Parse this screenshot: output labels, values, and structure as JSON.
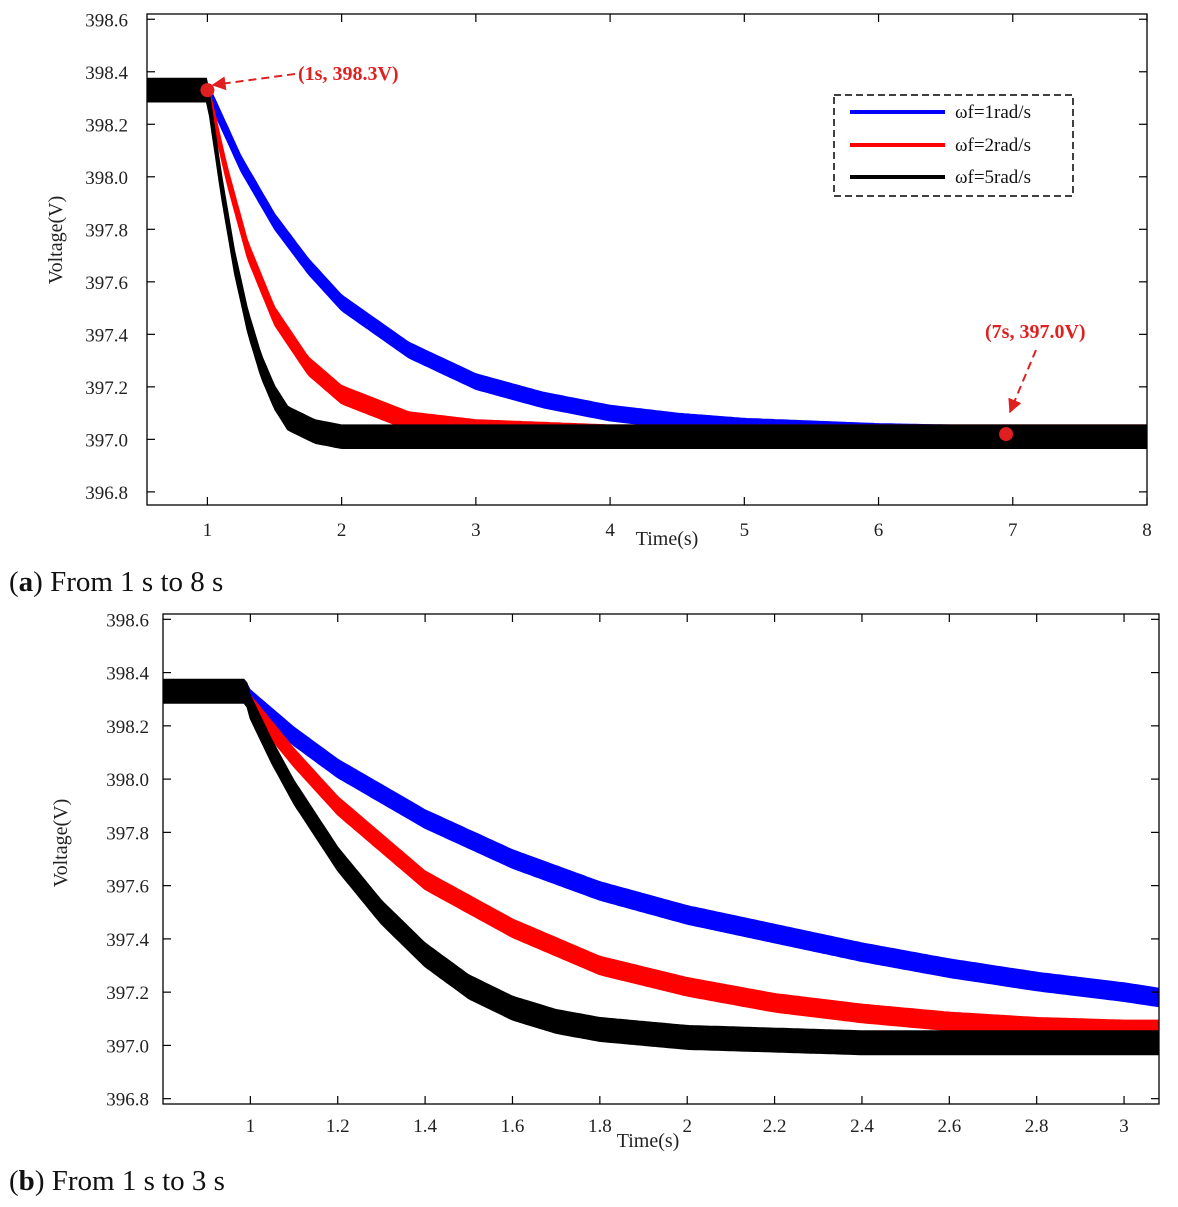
{
  "colors": {
    "blue": "#0000ff",
    "red": "#ff0000",
    "black": "#000000",
    "annotation": "#e02020"
  },
  "chart_data": [
    {
      "type": "line",
      "panel_letter": "a",
      "caption": "From 1 s to 8 s",
      "xlabel": "Time(s)",
      "ylabel": "Voltage(V)",
      "xlim": [
        0.55,
        8.0
      ],
      "ylim": [
        396.75,
        398.62
      ],
      "x_ticks": [
        1,
        2,
        3,
        4,
        5,
        6,
        7,
        8
      ],
      "x_tick_labels": [
        "1",
        "2",
        "3",
        "4",
        "5",
        "6",
        "7",
        "8"
      ],
      "y_ticks": [
        396.8,
        397.0,
        397.2,
        397.4,
        397.6,
        397.8,
        398.0,
        398.2,
        398.4,
        398.6
      ],
      "y_tick_labels": [
        "396.8",
        "397.0",
        "397.2",
        "397.4",
        "397.6",
        "397.8",
        "398.0",
        "398.2",
        "398.4",
        "398.6"
      ],
      "grid": false,
      "legend_position": "top-right",
      "series": [
        {
          "name": "ωf=1rad/s",
          "color": "#0000ff",
          "ripple": 0.03,
          "points": [
            [
              0.55,
              398.33
            ],
            [
              1.0,
              398.33
            ],
            [
              1.25,
              398.05
            ],
            [
              1.5,
              397.83
            ],
            [
              1.75,
              397.66
            ],
            [
              2.0,
              397.52
            ],
            [
              2.5,
              397.34
            ],
            [
              3.0,
              397.22
            ],
            [
              3.5,
              397.15
            ],
            [
              4.0,
              397.1
            ],
            [
              4.5,
              397.07
            ],
            [
              5.0,
              397.05
            ],
            [
              6.0,
              397.03
            ],
            [
              7.0,
              397.02
            ],
            [
              8.0,
              397.02
            ]
          ]
        },
        {
          "name": "ωf=2rad/s",
          "color": "#ff0000",
          "ripple": 0.035,
          "points": [
            [
              0.55,
              398.33
            ],
            [
              1.0,
              398.33
            ],
            [
              1.15,
              398.0
            ],
            [
              1.3,
              397.72
            ],
            [
              1.5,
              397.47
            ],
            [
              1.75,
              397.28
            ],
            [
              2.0,
              397.17
            ],
            [
              2.5,
              397.07
            ],
            [
              3.0,
              397.04
            ],
            [
              4.0,
              397.02
            ],
            [
              5.0,
              397.02
            ],
            [
              8.0,
              397.02
            ]
          ]
        },
        {
          "name": "ωf=5rad/s",
          "color": "#000000",
          "ripple": 0.045,
          "points": [
            [
              0.55,
              398.33
            ],
            [
              1.0,
              398.33
            ],
            [
              1.1,
              397.98
            ],
            [
              1.2,
              397.68
            ],
            [
              1.3,
              397.45
            ],
            [
              1.4,
              397.28
            ],
            [
              1.5,
              397.16
            ],
            [
              1.6,
              397.08
            ],
            [
              1.8,
              397.03
            ],
            [
              2.0,
              397.01
            ],
            [
              3.0,
              397.01
            ],
            [
              8.0,
              397.01
            ]
          ]
        }
      ],
      "annotations": [
        {
          "text": "(1s, 398.3V)",
          "x": 1.0,
          "y": 398.33
        },
        {
          "text": "(7s, 397.0V)",
          "x": 6.95,
          "y": 397.02
        }
      ]
    },
    {
      "type": "line",
      "panel_letter": "b",
      "caption": "From 1 s to 3 s",
      "xlabel": "Time(s)",
      "ylabel": "Voltage(V)",
      "xlim": [
        0.8,
        3.08
      ],
      "ylim": [
        396.78,
        398.62
      ],
      "x_ticks": [
        1,
        1.2,
        1.4,
        1.6,
        1.8,
        2,
        2.2,
        2.4,
        2.6,
        2.8,
        3
      ],
      "x_tick_labels": [
        "1",
        "1.2",
        "1.4",
        "1.6",
        "1.8",
        "2",
        "2.2",
        "2.4",
        "2.6",
        "2.8",
        "3"
      ],
      "y_ticks": [
        396.8,
        397.0,
        397.2,
        397.4,
        397.6,
        397.8,
        398.0,
        398.2,
        398.4,
        398.6
      ],
      "y_tick_labels": [
        "396.8",
        "397.0",
        "397.2",
        "397.4",
        "397.6",
        "397.8",
        "398.0",
        "398.2",
        "398.4",
        "398.6"
      ],
      "grid": false,
      "series": [
        {
          "name": "ωf=1rad/s",
          "color": "#0000ff",
          "ripple": 0.035,
          "points": [
            [
              0.8,
              398.33
            ],
            [
              0.99,
              398.33
            ],
            [
              1.0,
              398.3
            ],
            [
              1.1,
              398.16
            ],
            [
              1.2,
              398.04
            ],
            [
              1.4,
              397.85
            ],
            [
              1.6,
              397.7
            ],
            [
              1.8,
              397.58
            ],
            [
              2.0,
              397.49
            ],
            [
              2.2,
              397.42
            ],
            [
              2.4,
              397.35
            ],
            [
              2.6,
              397.29
            ],
            [
              2.8,
              397.24
            ],
            [
              3.0,
              397.2
            ],
            [
              3.08,
              397.18
            ]
          ]
        },
        {
          "name": "ωf=2rad/s",
          "color": "#ff0000",
          "ripple": 0.035,
          "points": [
            [
              0.8,
              398.33
            ],
            [
              0.99,
              398.33
            ],
            [
              1.0,
              398.28
            ],
            [
              1.1,
              398.08
            ],
            [
              1.2,
              397.9
            ],
            [
              1.4,
              397.62
            ],
            [
              1.6,
              397.44
            ],
            [
              1.8,
              397.3
            ],
            [
              2.0,
              397.22
            ],
            [
              2.2,
              397.16
            ],
            [
              2.4,
              397.12
            ],
            [
              2.6,
              397.09
            ],
            [
              2.8,
              397.07
            ],
            [
              3.0,
              397.06
            ],
            [
              3.08,
              397.06
            ]
          ]
        },
        {
          "name": "ωf=5rad/s",
          "color": "#000000",
          "ripple": 0.045,
          "points": [
            [
              0.8,
              398.33
            ],
            [
              0.99,
              398.33
            ],
            [
              1.0,
              398.27
            ],
            [
              1.05,
              398.1
            ],
            [
              1.1,
              397.95
            ],
            [
              1.2,
              397.7
            ],
            [
              1.3,
              397.5
            ],
            [
              1.4,
              397.34
            ],
            [
              1.5,
              397.22
            ],
            [
              1.6,
              397.14
            ],
            [
              1.7,
              397.09
            ],
            [
              1.8,
              397.06
            ],
            [
              2.0,
              397.03
            ],
            [
              2.4,
              397.01
            ],
            [
              3.08,
              397.01
            ]
          ]
        }
      ]
    }
  ]
}
